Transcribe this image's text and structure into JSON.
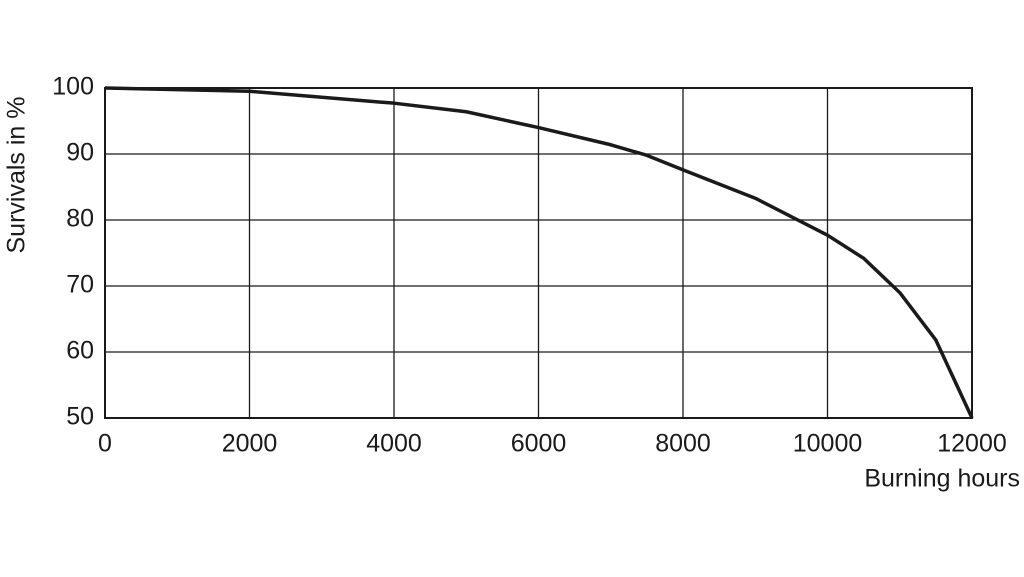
{
  "chart_data": {
    "type": "line",
    "x_label": "Burning hours",
    "y_label": "Survivals in %",
    "x": [
      0,
      2000,
      4000,
      5000,
      6000,
      7000,
      7500,
      8000,
      9000,
      10000,
      10500,
      11000,
      11500,
      12000
    ],
    "series": [
      {
        "color": "#1a1a1a",
        "values": [
          100,
          99.5,
          97.7,
          96.4,
          94,
          91.4,
          89.8,
          87.6,
          83.3,
          77.7,
          74.2,
          69,
          61.8,
          50
        ]
      }
    ],
    "xlim": [
      0,
      12000
    ],
    "xticks": [
      0,
      2000,
      4000,
      6000,
      8000,
      10000,
      12000
    ],
    "ylim": [
      50,
      100
    ],
    "yticks": [
      50,
      60,
      70,
      80,
      90,
      100
    ],
    "grid": true
  }
}
